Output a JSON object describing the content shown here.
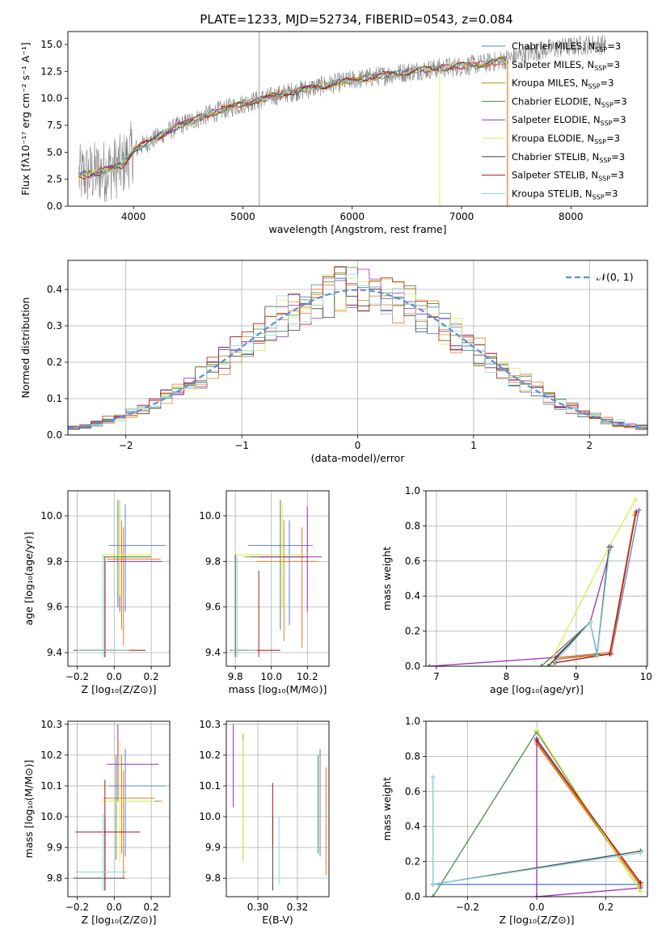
{
  "title": "PLATE=1233, MJD=52734, FIBERID=0543, z=0.084",
  "colors": {
    "chabrier_miles": "#5b7fd6",
    "salpeter_miles": "#f07828",
    "kroupa_miles": "#c98a1e",
    "chabrier_elodie": "#4e8a4e",
    "salpeter_elodie": "#9b30b8",
    "kroupa_elodie": "#d9ee4a",
    "chabrier_stelib": "#444444",
    "salpeter_stelib": "#b01818",
    "kroupa_stelib": "#8ad8d8",
    "data": "#808080",
    "normal": "#5b8fd6",
    "grid": "#b0b0b0"
  },
  "chart_data": [
    {
      "type": "line",
      "name": "spectrum",
      "xlabel": "wavelength [Angstrom, rest frame]",
      "ylabel": "Flux [fλ10⁻¹⁷ erg cm⁻² s⁻¹ A⁻¹]",
      "xlim": [
        3400,
        8700
      ],
      "ylim": [
        0,
        16.2
      ],
      "xticks": [
        4000,
        5000,
        6000,
        7000,
        8000
      ],
      "yticks": [
        0.0,
        2.5,
        5.0,
        7.5,
        10.0,
        12.5,
        15.0
      ],
      "continuum": {
        "x": [
          3500,
          3700,
          3900,
          4000,
          4200,
          4400,
          4600,
          4800,
          5000,
          5200,
          5400,
          5600,
          5800,
          6000,
          6200,
          6400,
          6600,
          6800,
          7000,
          7200,
          7400,
          7600,
          7800,
          8000,
          8200,
          8300
        ],
        "y": [
          2.8,
          3.2,
          3.8,
          5.2,
          6.3,
          7.4,
          8.2,
          8.9,
          9.5,
          10.0,
          10.5,
          10.9,
          11.3,
          11.7,
          12.0,
          12.3,
          12.6,
          12.8,
          13.0,
          13.2,
          13.6,
          14.2,
          14.6,
          14.8,
          15.0,
          15.0
        ]
      },
      "model_range": [
        3500,
        7420
      ],
      "grid": false,
      "legend": {
        "placement": "top-right",
        "entries": [
          "Chabrier MILES, N",
          "Salpeter MILES, N",
          "Kroupa MILES, N",
          "Chabrier ELODIE, N",
          "Salpeter ELODIE, N",
          "Kroupa ELODIE, N",
          "Chabrier STELIB, N",
          "Salpeter STELIB, N",
          "Kroupa STELIB, N"
        ],
        "sub": "SSP",
        "suffix": "=3"
      }
    },
    {
      "type": "bar",
      "name": "residual-histogram",
      "xlabel": "(data-model)/error",
      "ylabel": "Normed distribution",
      "xlim": [
        -2.5,
        2.5
      ],
      "ylim": [
        0,
        0.48
      ],
      "xticks": [
        -2,
        -1,
        0,
        1,
        2
      ],
      "yticks": [
        0.0,
        0.1,
        0.2,
        0.3,
        0.4
      ],
      "bin_width": 0.1,
      "grid": true,
      "legend": {
        "placement": "top-right",
        "label": "𝒩(0, 1)"
      }
    },
    {
      "type": "scatter",
      "name": "age-vs-z",
      "xlabel": "Z [log₁₀(Z/Z⊙)]",
      "ylabel": "age  [log₁₀(age/yr)]",
      "xlim": [
        -0.25,
        0.3
      ],
      "ylim": [
        9.34,
        10.11
      ],
      "xticks": [
        -0.2,
        0.0,
        0.2
      ],
      "yticks": [
        9.4,
        9.6,
        9.8,
        10.0
      ],
      "grid": true
    },
    {
      "type": "scatter",
      "name": "age-vs-mass",
      "xlabel": "mass [log₁₀(M/M⊙)]",
      "xlim": [
        9.75,
        10.32
      ],
      "ylim": [
        9.34,
        10.11
      ],
      "xticks": [
        9.8,
        10.0,
        10.2
      ],
      "yticks": [
        9.4,
        9.6,
        9.8,
        10.0
      ],
      "grid": true
    },
    {
      "type": "line",
      "name": "mass-weight-vs-age",
      "xlabel": "age  [log₁₀(age/yr)]",
      "ylabel": "mass weight",
      "xlim": [
        6.85,
        10.02
      ],
      "ylim": [
        0,
        1.0
      ],
      "xticks": [
        7,
        8,
        9,
        10
      ],
      "yticks": [
        0.0,
        0.2,
        0.4,
        0.6,
        0.8,
        1.0
      ],
      "grid": true
    },
    {
      "type": "scatter",
      "name": "mass-vs-z",
      "xlabel": "Z [log₁₀(Z/Z⊙)]",
      "ylabel": "mass [log₁₀(M/M⊙)]",
      "xlim": [
        -0.25,
        0.3
      ],
      "ylim": [
        9.74,
        10.31
      ],
      "xticks": [
        -0.2,
        0.0,
        0.2
      ],
      "yticks": [
        9.8,
        9.9,
        10.0,
        10.1,
        10.2,
        10.3
      ],
      "grid": true
    },
    {
      "type": "scatter",
      "name": "mass-vs-ebv",
      "xlabel": "E(B-V)",
      "xlim": [
        0.284,
        0.336
      ],
      "ylim": [
        9.74,
        10.31
      ],
      "xticks": [
        0.3,
        0.32
      ],
      "yticks": [
        9.8,
        9.9,
        10.0,
        10.1,
        10.2,
        10.3
      ],
      "grid": true
    },
    {
      "type": "line",
      "name": "mass-weight-vs-z",
      "xlabel": "Z [log₁₀(Z/Z⊙)]",
      "ylabel": "mass weight",
      "xlim": [
        -0.32,
        0.32
      ],
      "ylim": [
        0,
        1.0
      ],
      "xticks": [
        -0.2,
        0.0,
        0.2
      ],
      "yticks": [
        0.0,
        0.2,
        0.4,
        0.6,
        0.8,
        1.0
      ],
      "grid": true
    }
  ]
}
